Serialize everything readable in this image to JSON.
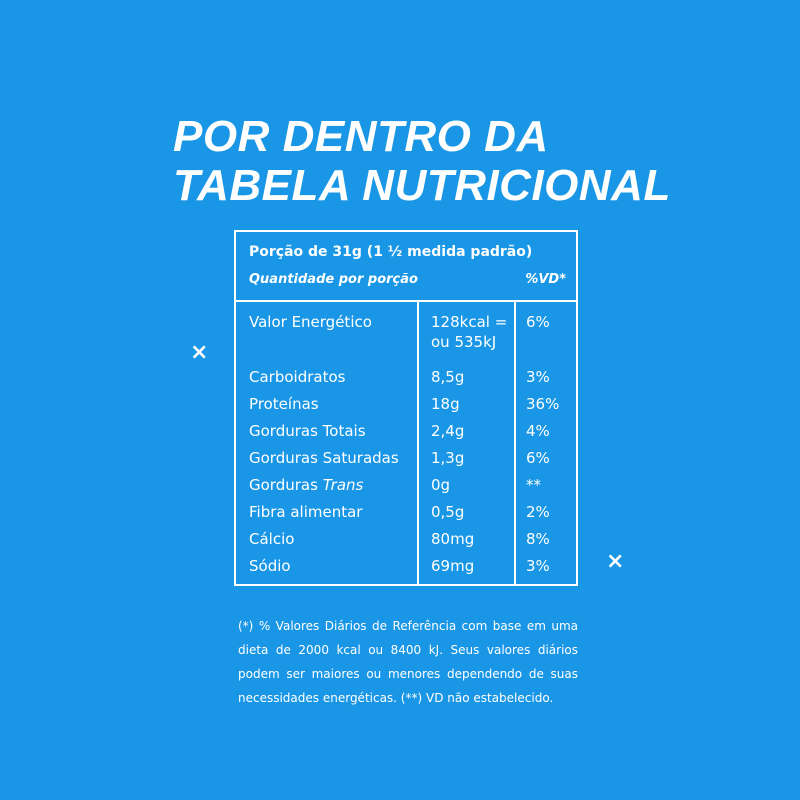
{
  "title": {
    "line1": "POR DENTRO DA",
    "line2": "TABELA NUTRICIONAL"
  },
  "decor": {
    "x_mark": "×"
  },
  "table": {
    "portion": "Porção de 31g (1 ½ medida padrão)",
    "quantity_label": "Quantidade por porção",
    "vd_label": "%VD*",
    "rows": [
      {
        "name": "Valor Energético",
        "amount_line1": "128kcal =",
        "amount_line2": "ou 535kJ",
        "vd": "6%"
      },
      {
        "name": "Carboidratos",
        "amount": "8,5g",
        "vd": "3%"
      },
      {
        "name": "Proteínas",
        "amount": "18g",
        "vd": "36%"
      },
      {
        "name": "Gorduras Totais",
        "amount": "2,4g",
        "vd": "4%"
      },
      {
        "name": "Gorduras Saturadas",
        "amount": "1,3g",
        "vd": "6%"
      },
      {
        "name_prefix": "Gorduras ",
        "name_italic": "Trans",
        "amount": "0g",
        "vd": "**"
      },
      {
        "name": "Fibra alimentar",
        "amount": "0,5g",
        "vd": "2%"
      },
      {
        "name": "Cálcio",
        "amount": "80mg",
        "vd": "8%"
      },
      {
        "name": "Sódio",
        "amount": "69mg",
        "vd": "3%"
      }
    ]
  },
  "footnote": "(*) % Valores Diários de Referência com base em uma dieta de 2000 kcal ou 8400 kJ. Seus valores diários podem ser maiores ou menores dependendo de suas necessidades energéticas. (**) VD não estabelecido.",
  "colors": {
    "background": "#1a96e6",
    "foreground": "#ffffff"
  }
}
